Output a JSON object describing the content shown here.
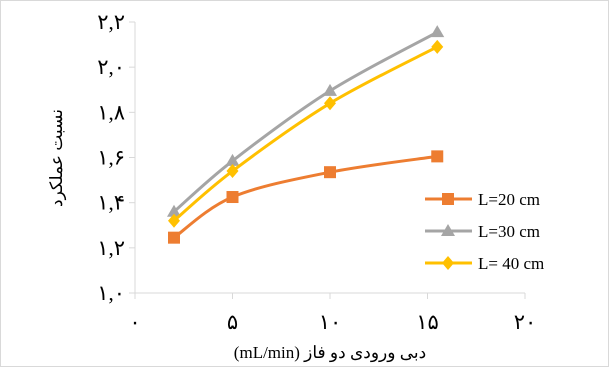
{
  "chart_data": {
    "type": "line",
    "xlabel": "دبی ورودی دو فاز (mL/min)",
    "ylabel": "نسبت عملکرد",
    "xlim": [
      0,
      20
    ],
    "ylim": [
      1.0,
      2.2
    ],
    "x_ticks": [
      0,
      5,
      10,
      15,
      20
    ],
    "y_ticks": [
      1.0,
      1.2,
      1.4,
      1.6,
      1.8,
      2.0,
      2.2
    ],
    "x_tick_labels": [
      "۰",
      "۵",
      "۱۰",
      "۱۵",
      "۲۰"
    ],
    "y_tick_labels": [
      "۱,۰",
      "۱,۲",
      "۱,۴",
      "۱,۶",
      "۱,۸",
      "۲,۰",
      "۲,۲"
    ],
    "grid": false,
    "legend_position": "right",
    "series": [
      {
        "name": "L=20 cm",
        "color": "#ED7D31",
        "marker": "square",
        "x": [
          2,
          5,
          10,
          15.5
        ],
        "y": [
          1.245,
          1.425,
          1.535,
          1.605
        ]
      },
      {
        "name": "L=30 cm",
        "color": "#A5A5A5",
        "marker": "triangle",
        "x": [
          2,
          5,
          10,
          15.5
        ],
        "y": [
          1.36,
          1.585,
          1.895,
          2.155
        ]
      },
      {
        "name": "L= 40 cm",
        "color": "#FFC000",
        "marker": "diamond",
        "x": [
          2,
          5,
          10,
          15.5
        ],
        "y": [
          1.32,
          1.54,
          1.84,
          2.09
        ]
      }
    ]
  }
}
